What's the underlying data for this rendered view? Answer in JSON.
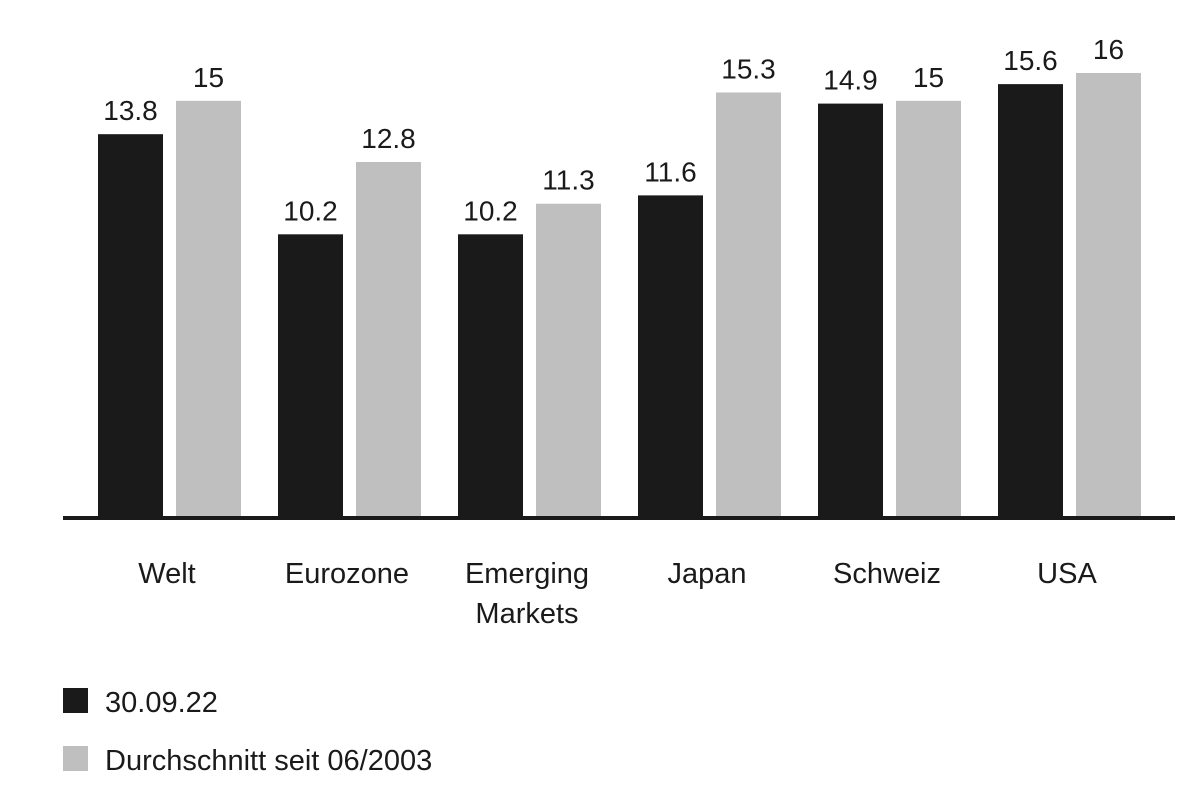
{
  "chart_data": {
    "type": "bar",
    "categories": [
      "Welt",
      "Eurozone",
      "Emerging Markets",
      "Japan",
      "Schweiz",
      "USA"
    ],
    "series": [
      {
        "name": "30.09.22",
        "color": "#1a1a1a",
        "values": [
          13.8,
          10.2,
          10.2,
          11.6,
          14.9,
          15.6
        ]
      },
      {
        "name": "Durchschnitt seit 06/2003",
        "color": "#bfbfbf",
        "values": [
          15.0,
          12.8,
          11.3,
          15.3,
          15.0,
          16.0
        ]
      }
    ],
    "ylim": [
      0,
      16
    ]
  }
}
